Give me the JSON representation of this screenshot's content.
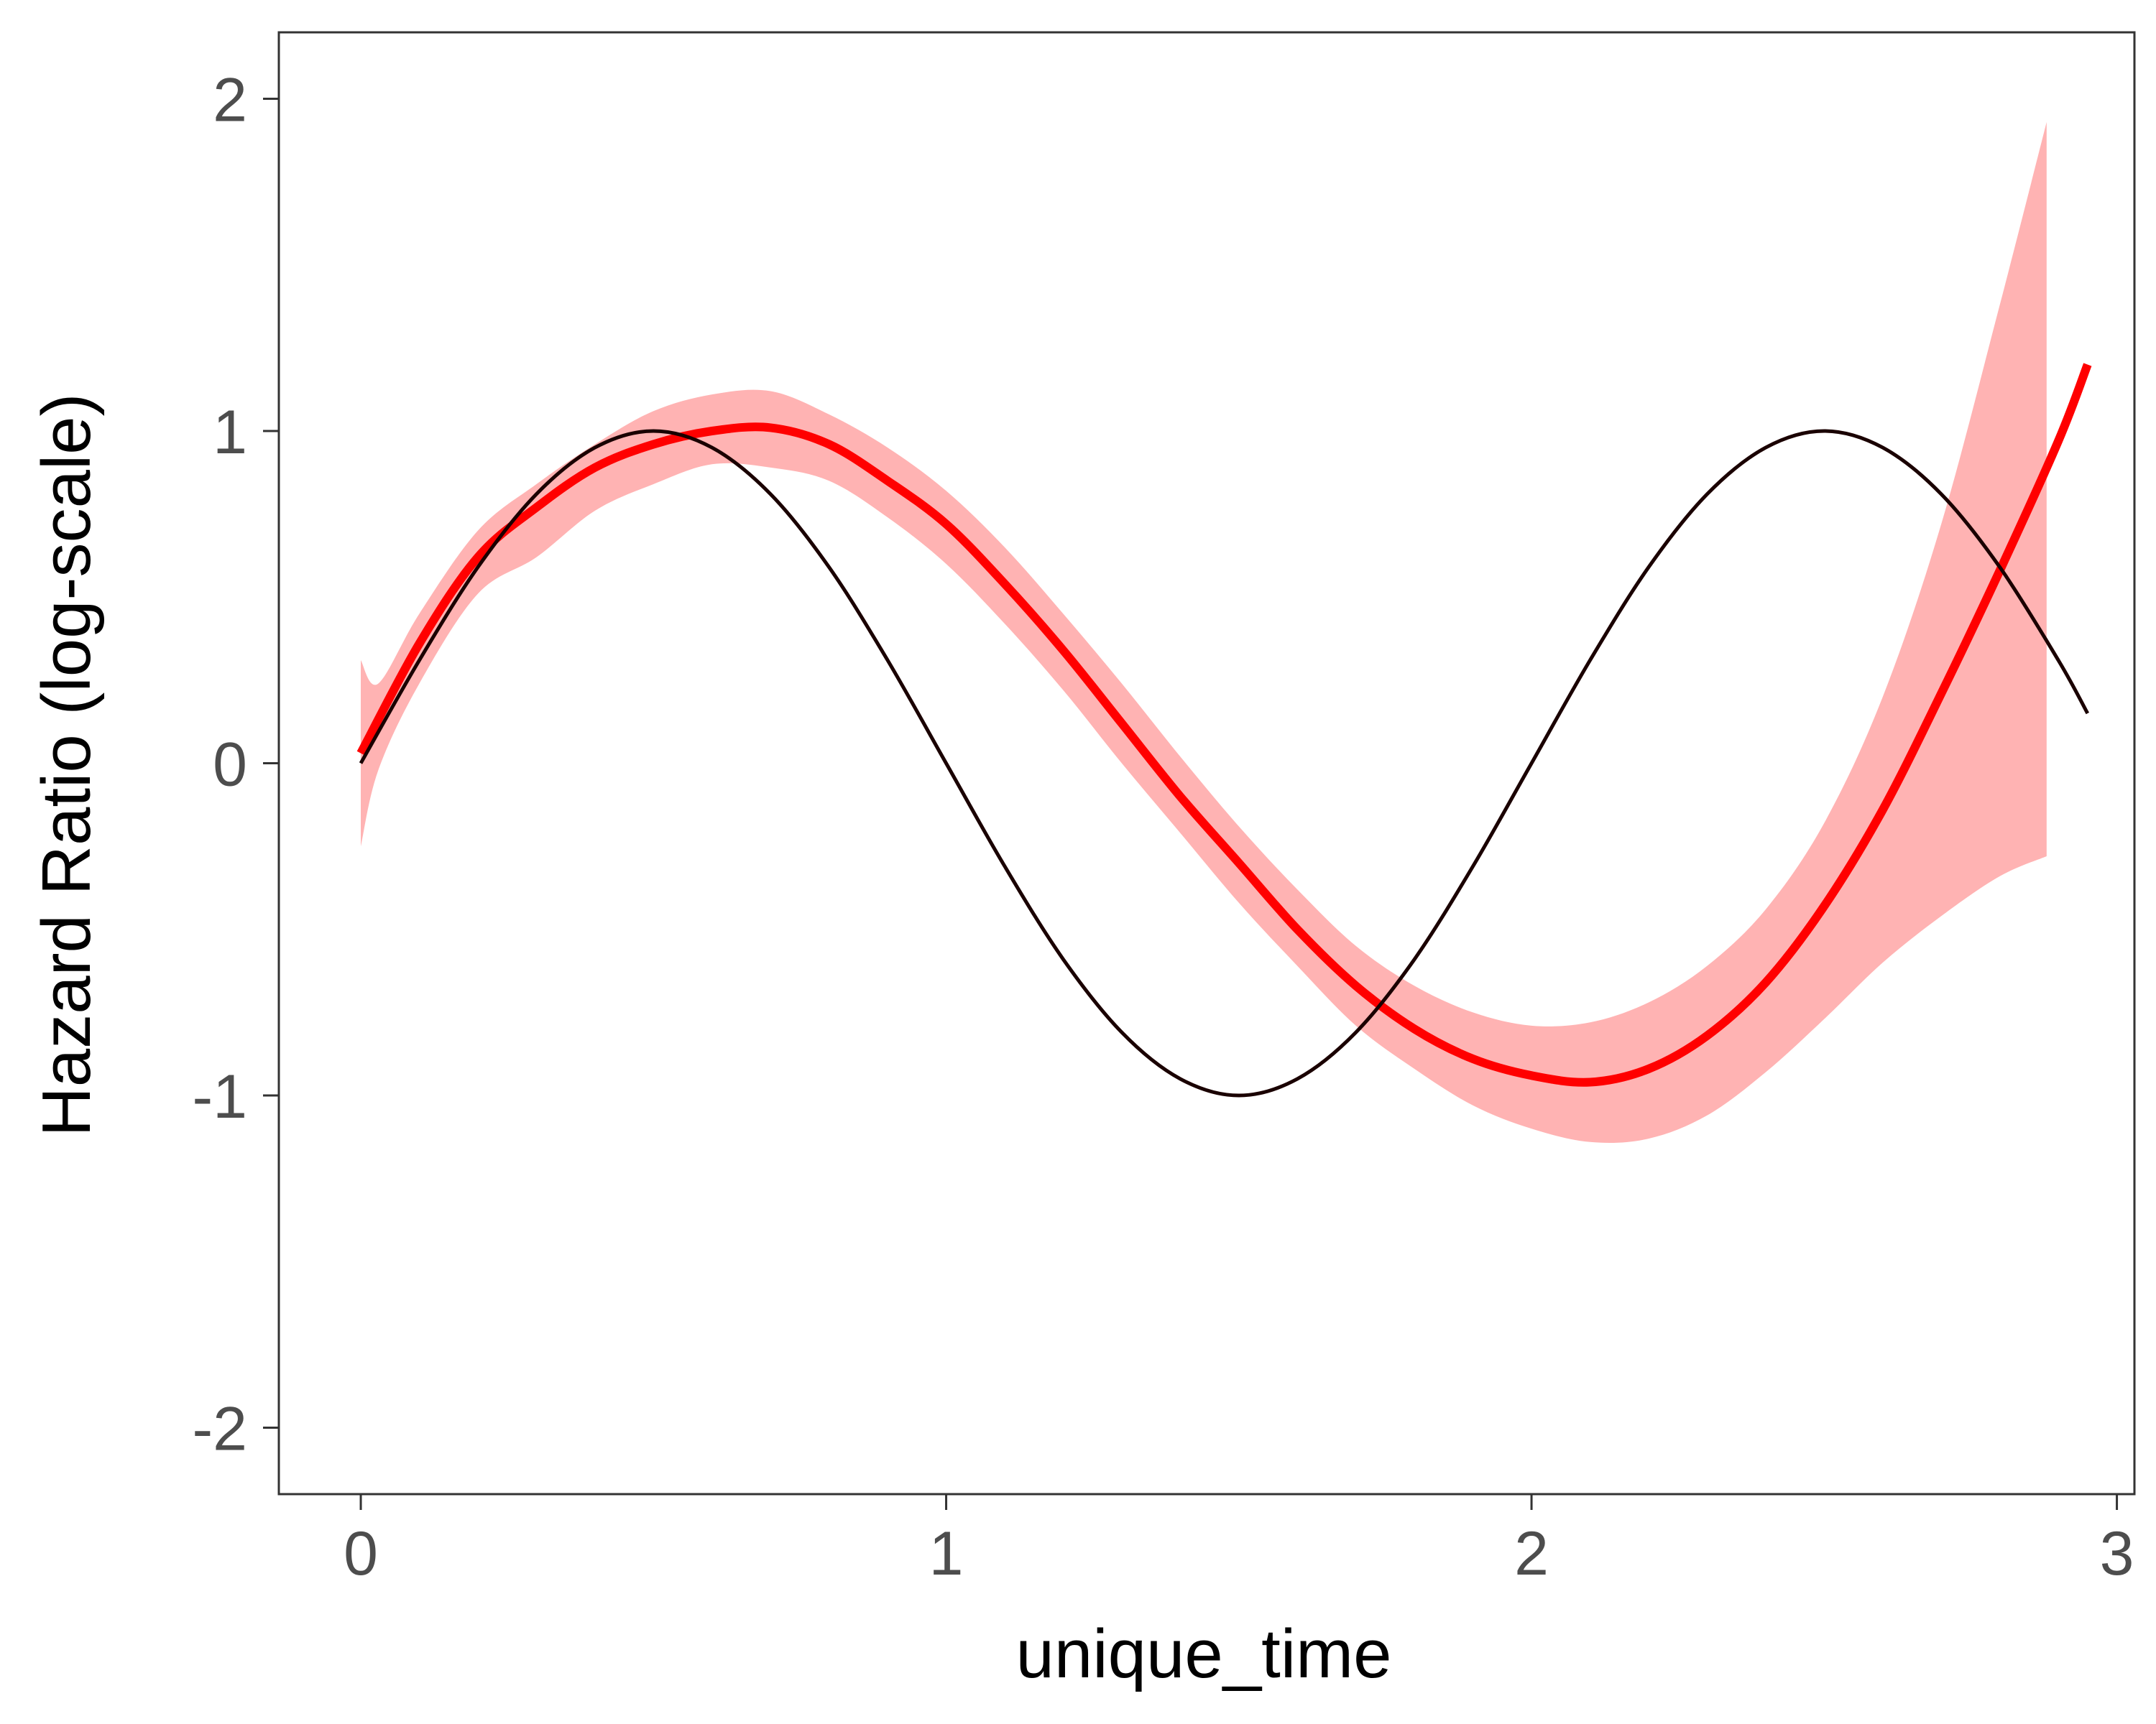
{
  "chart_data": {
    "type": "line",
    "xlabel": "unique_time",
    "ylabel": "Hazard Ratio (log-scale)",
    "xlim": [
      -0.14,
      3.03
    ],
    "ylim": [
      -2.2,
      2.2
    ],
    "x_ticks": [
      0,
      1,
      2,
      3
    ],
    "x_tick_labels": [
      "0",
      "1",
      "2",
      "3"
    ],
    "y_ticks": [
      -2,
      -1,
      0,
      1,
      2
    ],
    "y_tick_labels": [
      "-2",
      "-1",
      "0",
      "1",
      "2"
    ],
    "grid": false,
    "colors": {
      "estimate": "#ff0000",
      "band": "#ffb3b3",
      "truth": "#1a0000"
    },
    "series": [
      {
        "role": "estimate",
        "x": [
          0,
          0.1,
          0.2,
          0.3,
          0.4,
          0.5,
          0.6,
          0.7,
          0.8,
          0.9,
          1.0,
          1.1,
          1.2,
          1.3,
          1.4,
          1.5,
          1.6,
          1.7,
          1.8,
          1.9,
          2.0,
          2.1,
          2.2,
          2.3,
          2.4,
          2.5,
          2.6,
          2.7,
          2.8,
          2.9,
          2.95
        ],
        "y": [
          0.03,
          0.36,
          0.62,
          0.77,
          0.89,
          0.96,
          1.0,
          1.01,
          0.96,
          0.85,
          0.72,
          0.54,
          0.34,
          0.12,
          -0.1,
          -0.3,
          -0.5,
          -0.67,
          -0.8,
          -0.89,
          -0.94,
          -0.96,
          -0.92,
          -0.82,
          -0.66,
          -0.43,
          -0.14,
          0.21,
          0.58,
          0.97,
          1.2
        ]
      },
      {
        "role": "confidence-band",
        "x": [
          0,
          0.03,
          0.1,
          0.2,
          0.3,
          0.4,
          0.5,
          0.6,
          0.7,
          0.8,
          0.9,
          1.0,
          1.1,
          1.2,
          1.3,
          1.4,
          1.5,
          1.6,
          1.7,
          1.8,
          1.9,
          2.0,
          2.1,
          2.2,
          2.3,
          2.4,
          2.5,
          2.6,
          2.7,
          2.8,
          2.88
        ],
        "upper": [
          0.31,
          0.24,
          0.45,
          0.7,
          0.84,
          0.96,
          1.06,
          1.11,
          1.12,
          1.05,
          0.95,
          0.82,
          0.65,
          0.45,
          0.24,
          0.02,
          -0.19,
          -0.38,
          -0.55,
          -0.67,
          -0.75,
          -0.79,
          -0.78,
          -0.72,
          -0.61,
          -0.44,
          -0.18,
          0.2,
          0.72,
          1.38,
          1.93
        ],
        "lower": [
          -0.25,
          -0.02,
          0.24,
          0.51,
          0.62,
          0.76,
          0.84,
          0.9,
          0.89,
          0.85,
          0.74,
          0.6,
          0.42,
          0.22,
          0.0,
          -0.21,
          -0.42,
          -0.61,
          -0.79,
          -0.92,
          -1.03,
          -1.1,
          -1.14,
          -1.13,
          -1.06,
          -0.93,
          -0.77,
          -0.6,
          -0.46,
          -0.34,
          -0.28
        ]
      },
      {
        "role": "true-effect",
        "x": [
          0,
          0.1,
          0.2,
          0.3,
          0.4,
          0.5,
          0.6,
          0.7,
          0.8,
          0.9,
          1.0,
          1.1,
          1.2,
          1.3,
          1.4,
          1.5,
          1.6,
          1.7,
          1.8,
          1.9,
          2.0,
          2.1,
          2.2,
          2.3,
          2.4,
          2.5,
          2.6,
          2.7,
          2.8,
          2.9,
          2.95
        ],
        "y": [
          0,
          0.31,
          0.59,
          0.81,
          0.95,
          1.0,
          0.95,
          0.81,
          0.59,
          0.31,
          0.0,
          -0.31,
          -0.59,
          -0.81,
          -0.95,
          -1.0,
          -0.95,
          -0.81,
          -0.59,
          -0.31,
          0.0,
          0.31,
          0.59,
          0.81,
          0.95,
          1.0,
          0.95,
          0.81,
          0.59,
          0.31,
          0.15
        ]
      }
    ]
  }
}
